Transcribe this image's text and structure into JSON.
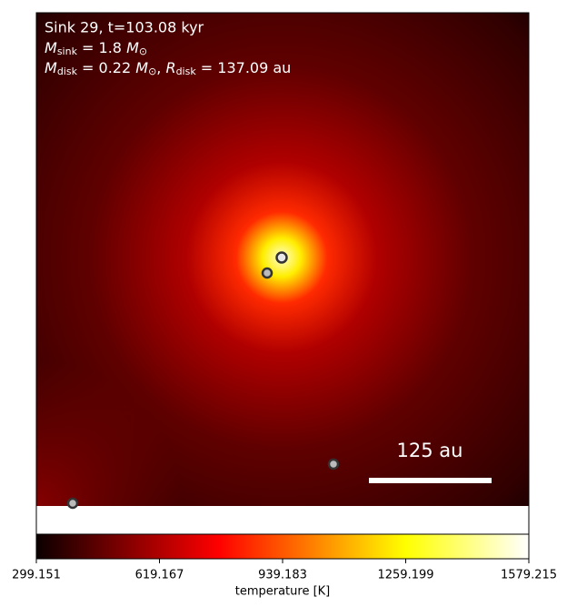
{
  "chart_data": {
    "type": "image",
    "annotations": [
      "Sink 29, t=103.08 kyr",
      [
        "M",
        "sink",
        " = 1.8 ",
        "M",
        "⊙"
      ],
      [
        "M",
        "disk",
        " = 0.22 ",
        "M",
        "⊙",
        ", ",
        "R",
        "disk",
        " = 137.09 au"
      ]
    ],
    "scale_bar_label": "125 au",
    "colorbar": {
      "label": "temperature [K]",
      "lim": [
        299.151,
        1579.215
      ],
      "ticks": [
        299.151,
        619.167,
        939.183,
        1259.199,
        1579.215
      ],
      "colormap": "hot"
    }
  }
}
